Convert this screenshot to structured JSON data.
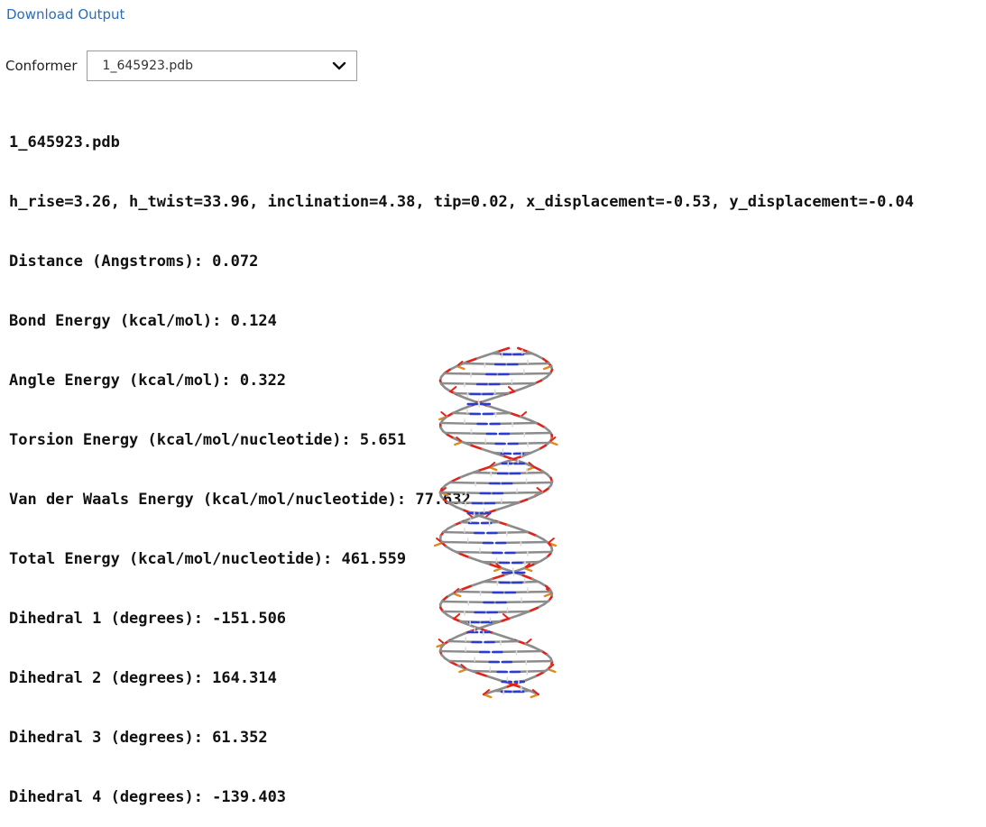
{
  "download": {
    "label": "Download Output"
  },
  "conformer": {
    "label": "Conformer",
    "selected": "1_645923.pdb",
    "icon": "chevron-down-icon"
  },
  "output": {
    "filename": "1_645923.pdb",
    "params": "h_rise=3.26, h_twist=33.96, inclination=4.38, tip=0.02, x_displacement=-0.53, y_displacement=-0.04",
    "lines": [
      "Distance (Angstroms): 0.072",
      "Bond Energy (kcal/mol): 0.124",
      "Angle Energy (kcal/mol): 0.322",
      "Torsion Energy (kcal/mol/nucleotide): 5.651",
      "Van der Waals Energy (kcal/mol/nucleotide): 77.632",
      "Total Energy (kcal/mol/nucleotide): 461.559",
      "Dihedral 1 (degrees): -151.506",
      "Dihedral 2 (degrees): 164.314",
      "Dihedral 3 (degrees): 61.352",
      "Dihedral 4 (degrees): -139.403"
    ]
  },
  "colors": {
    "link": "#2a6ebb",
    "carbon": "#8c8c8c",
    "oxygen": "#e0231a",
    "nitrogen": "#2b3bd6",
    "phosphorus": "#e08a1a",
    "hydrogen": "#dddddd"
  }
}
